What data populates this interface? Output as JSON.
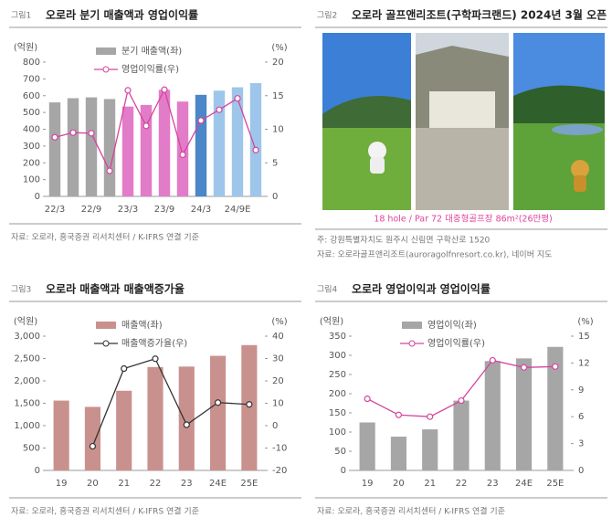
{
  "chart_data": [
    {
      "type": "bar_line",
      "figure_label": "그림1",
      "title": "오로라 분기 매출액과 영업이익률",
      "y_unit": "(억원)",
      "y2_unit": "(%)",
      "categories": [
        "22/3",
        null,
        "22/9",
        null,
        "23/3",
        null,
        "23/9",
        null,
        "24/3",
        null,
        "24/9E",
        null
      ],
      "series": [
        {
          "name": "분기 매출액(좌)",
          "kind": "bar",
          "color": "#a6a6a6",
          "colors": [
            "#a6a6a6",
            "#a6a6a6",
            "#a6a6a6",
            "#a6a6a6",
            "#e27cc8",
            "#e27cc8",
            "#e27cc8",
            "#e27cc8",
            "#4a86c8",
            "#9ec5ea",
            "#9ec5ea",
            "#9ec5ea"
          ],
          "values": [
            560,
            585,
            590,
            580,
            535,
            545,
            635,
            565,
            605,
            630,
            650,
            675
          ]
        },
        {
          "name": "영업이익률(우)",
          "kind": "line",
          "axis": "y2",
          "color": "#d6449e",
          "values": [
            8.8,
            9.5,
            9.4,
            3.8,
            15.8,
            10.5,
            15.9,
            6.2,
            11.3,
            12.9,
            14.6,
            6.9
          ]
        }
      ],
      "ylim": [
        0,
        800
      ],
      "yticks": [
        0,
        100,
        200,
        300,
        400,
        500,
        600,
        700,
        800
      ],
      "y2lim": [
        0,
        20
      ],
      "y2ticks": [
        0,
        5,
        10,
        15,
        20
      ],
      "source": "자료: 오로라, 흥국증권 리서치센터 / K-IFRS 연결 기준"
    },
    {
      "type": "bar_line",
      "figure_label": "그림3",
      "title": "오로라 매출액과 매출액증가율",
      "y_unit": "(억원)",
      "y2_unit": "(%)",
      "categories": [
        "19",
        "20",
        "21",
        "22",
        "23",
        "24E",
        "25E"
      ],
      "series": [
        {
          "name": "매출액(좌)",
          "kind": "bar",
          "color": "#c9918e",
          "values": [
            1560,
            1420,
            1780,
            2310,
            2320,
            2560,
            2800
          ]
        },
        {
          "name": "매출액증가율(우)",
          "kind": "line",
          "axis": "y2",
          "color": "#333333",
          "values": [
            null,
            -9.2,
            25.5,
            29.9,
            0.4,
            10.3,
            9.5
          ]
        }
      ],
      "ylim": [
        0,
        3000
      ],
      "yticks": [
        0,
        500,
        {
          "value": 1000,
          "label": "1,000"
        },
        {
          "value": 1500,
          "label": "1,500"
        },
        {
          "value": 2000,
          "label": "2,000"
        },
        {
          "value": 2500,
          "label": "2,500"
        },
        {
          "value": 3000,
          "label": "3,000"
        }
      ],
      "y2lim": [
        -20,
        40
      ],
      "y2ticks": [
        -20,
        -10,
        0,
        10,
        20,
        30,
        40
      ],
      "source": "자료: 오로라, 흥국증권 리서치센터 / K-IFRS 연결 기준"
    },
    {
      "type": "bar_line",
      "figure_label": "그림4",
      "title": "오로라 영업이익과 영업이익률",
      "y_unit": "(억원)",
      "y2_unit": "(%)",
      "categories": [
        "19",
        "20",
        "21",
        "22",
        "23",
        "24E",
        "25E"
      ],
      "series": [
        {
          "name": "영업이익(좌)",
          "kind": "bar",
          "color": "#a6a6a6",
          "values": [
            125,
            88,
            107,
            182,
            285,
            292,
            322
          ]
        },
        {
          "name": "영업이익률(우)",
          "kind": "line",
          "axis": "y2",
          "color": "#d6449e",
          "values": [
            8.0,
            6.2,
            6.0,
            7.8,
            12.3,
            11.5,
            11.6
          ]
        }
      ],
      "ylim": [
        0,
        350
      ],
      "yticks": [
        0,
        50,
        100,
        150,
        200,
        250,
        300,
        350
      ],
      "y2lim": [
        0,
        15
      ],
      "y2ticks": [
        0,
        3,
        6,
        9,
        12,
        15
      ],
      "source": "자료: 오로라, 흥국증권 리서치센터 / K-IFRS 연결 기준"
    }
  ],
  "photo_panel": {
    "figure_label": "그림2",
    "title": "오로라 골프앤리조트(구학파크랜드) 2024년 3월 오픈",
    "caption": "18 hole / Par 72 대중형골프장 86m²(26만평)",
    "notes": [
      "주: 강원특별자치도 원주시 신림면 구학산로 1520",
      "자료: 오로라골프앤리조트(auroragolfnresort.co.kr), 네이버 지도"
    ]
  }
}
